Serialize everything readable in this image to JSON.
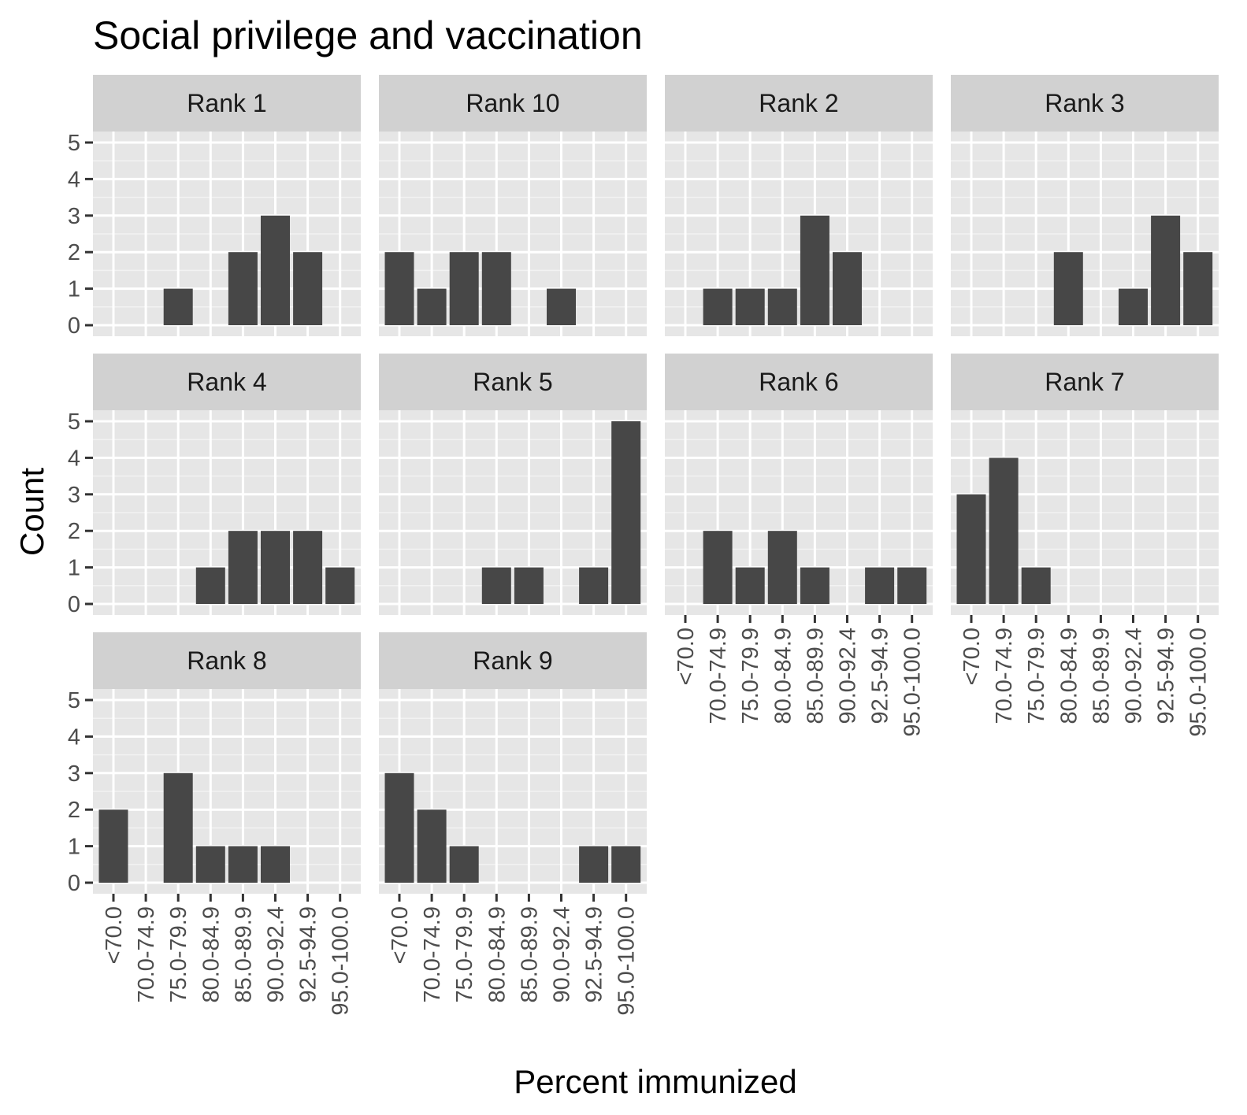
{
  "chart_data": {
    "type": "bar",
    "title": "Social privilege and vaccination",
    "xlabel": "Percent immunized",
    "ylabel": "Count",
    "ylim": [
      0,
      5
    ],
    "yticks": [
      "0",
      "1",
      "2",
      "3",
      "4",
      "5"
    ],
    "categories": [
      "<70.0",
      "70.0-74.9",
      "75.0-79.9",
      "80.0-84.9",
      "85.0-89.9",
      "90.0-92.4",
      "92.5-94.9",
      "95.0-100.0"
    ],
    "grid": true,
    "bar_color": "#474747",
    "panel_background": "#e6e6e6",
    "strip_background": "#d1d1d1",
    "panels": [
      {
        "label": "Rank  1",
        "values": [
          0,
          0,
          1,
          0,
          2,
          3,
          2,
          0
        ]
      },
      {
        "label": "Rank  10",
        "values": [
          2,
          1,
          2,
          2,
          0,
          1,
          0,
          0
        ]
      },
      {
        "label": "Rank  2",
        "values": [
          0,
          1,
          1,
          1,
          3,
          2,
          0,
          0
        ]
      },
      {
        "label": "Rank  3",
        "values": [
          0,
          0,
          0,
          2,
          0,
          1,
          3,
          2
        ]
      },
      {
        "label": "Rank  4",
        "values": [
          0,
          0,
          0,
          1,
          2,
          2,
          2,
          1
        ]
      },
      {
        "label": "Rank  5",
        "values": [
          0,
          0,
          0,
          1,
          1,
          0,
          1,
          5
        ]
      },
      {
        "label": "Rank  6",
        "values": [
          0,
          2,
          1,
          2,
          1,
          0,
          1,
          1
        ]
      },
      {
        "label": "Rank  7",
        "values": [
          3,
          4,
          1,
          0,
          0,
          0,
          0,
          0
        ]
      },
      {
        "label": "Rank  8",
        "values": [
          2,
          0,
          3,
          1,
          1,
          1,
          0,
          0
        ]
      },
      {
        "label": "Rank  9",
        "values": [
          3,
          2,
          1,
          0,
          0,
          0,
          1,
          1
        ]
      }
    ]
  }
}
